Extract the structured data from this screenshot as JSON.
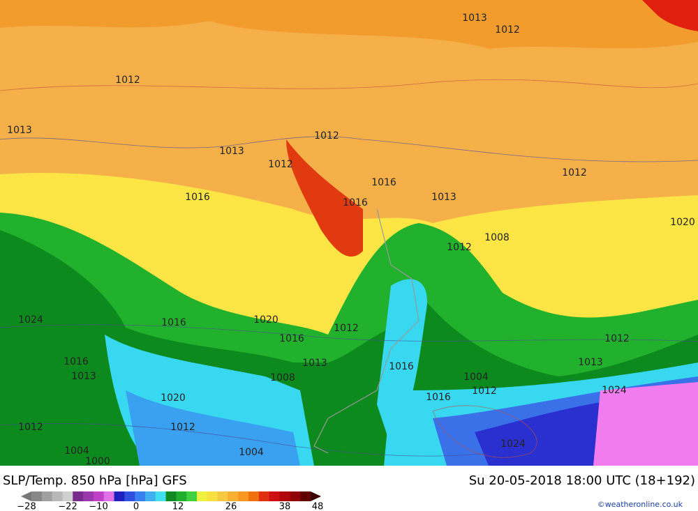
{
  "map": {
    "title": "SLP/Temp. 850 hPa [hPa] GFS",
    "valid_time": "Su 20-05-2018 18:00 UTC (18+192)",
    "credit": "©weatheronline.co.uk",
    "colorbar_labels": [
      "−28",
      "−22",
      "−10",
      "0",
      "12",
      "26",
      "38",
      "48"
    ],
    "isobar_labels": [
      "1013",
      "1012",
      "1012",
      "1013",
      "1012",
      "1013",
      "1012",
      "1012",
      "1016",
      "1016",
      "1013",
      "1016",
      "1020",
      "1008",
      "1012",
      "1024",
      "1016",
      "1020",
      "1012",
      "1016",
      "1012",
      "1016",
      "1013",
      "1013",
      "1016",
      "1013",
      "1008",
      "1004",
      "1012",
      "1024",
      "1016",
      "1020",
      "1012",
      "1012",
      "1024",
      "1004",
      "1004",
      "1000"
    ]
  }
}
